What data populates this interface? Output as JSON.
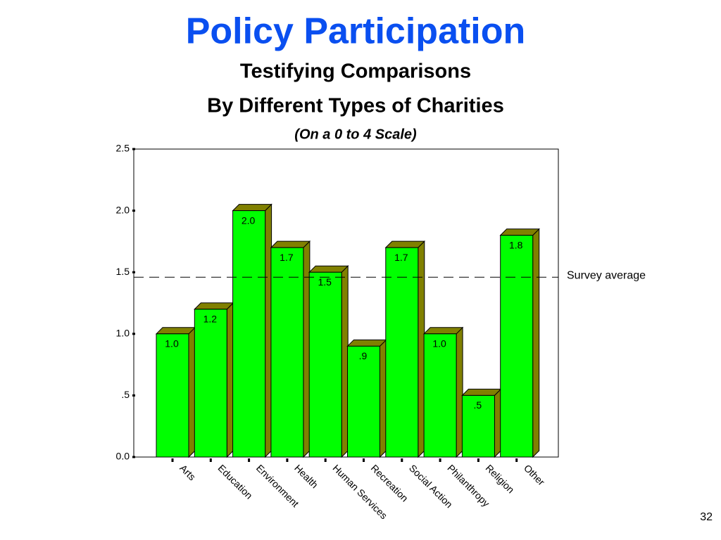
{
  "chart_data": {
    "type": "bar3d",
    "title": "Policy Participation",
    "subtitle": [
      "Testifying Comparisons",
      "By Different Types of Charities"
    ],
    "note": "(On a 0 to 4 Scale)",
    "categories": [
      "Arts",
      "Education",
      "Environment",
      "Health",
      "Human Services",
      "Recreation",
      "Social Action",
      "Philanthropy",
      "Religion",
      "Other"
    ],
    "values": [
      1.0,
      1.2,
      2.0,
      1.7,
      1.5,
      0.9,
      1.7,
      1.0,
      0.5,
      1.8
    ],
    "value_labels": [
      "1.0",
      "1.2",
      "2.0",
      "1.7",
      "1.5",
      ".9",
      "1.7",
      "1.0",
      ".5",
      "1.8"
    ],
    "color": "#00ff00",
    "side_color": "#808000",
    "ylim": [
      0,
      2.5
    ],
    "yticks": [
      {
        "value": 0,
        "label": "0.0"
      },
      {
        "value": 0.5,
        "label": ".5"
      },
      {
        "value": 1.0,
        "label": "1.0"
      },
      {
        "value": 1.5,
        "label": "1.5"
      },
      {
        "value": 2.0,
        "label": "2.0"
      },
      {
        "value": 2.5,
        "label": "2.5"
      }
    ],
    "reference_line": {
      "value": 1.46,
      "label": "Survey average"
    }
  },
  "slide_number": 32
}
